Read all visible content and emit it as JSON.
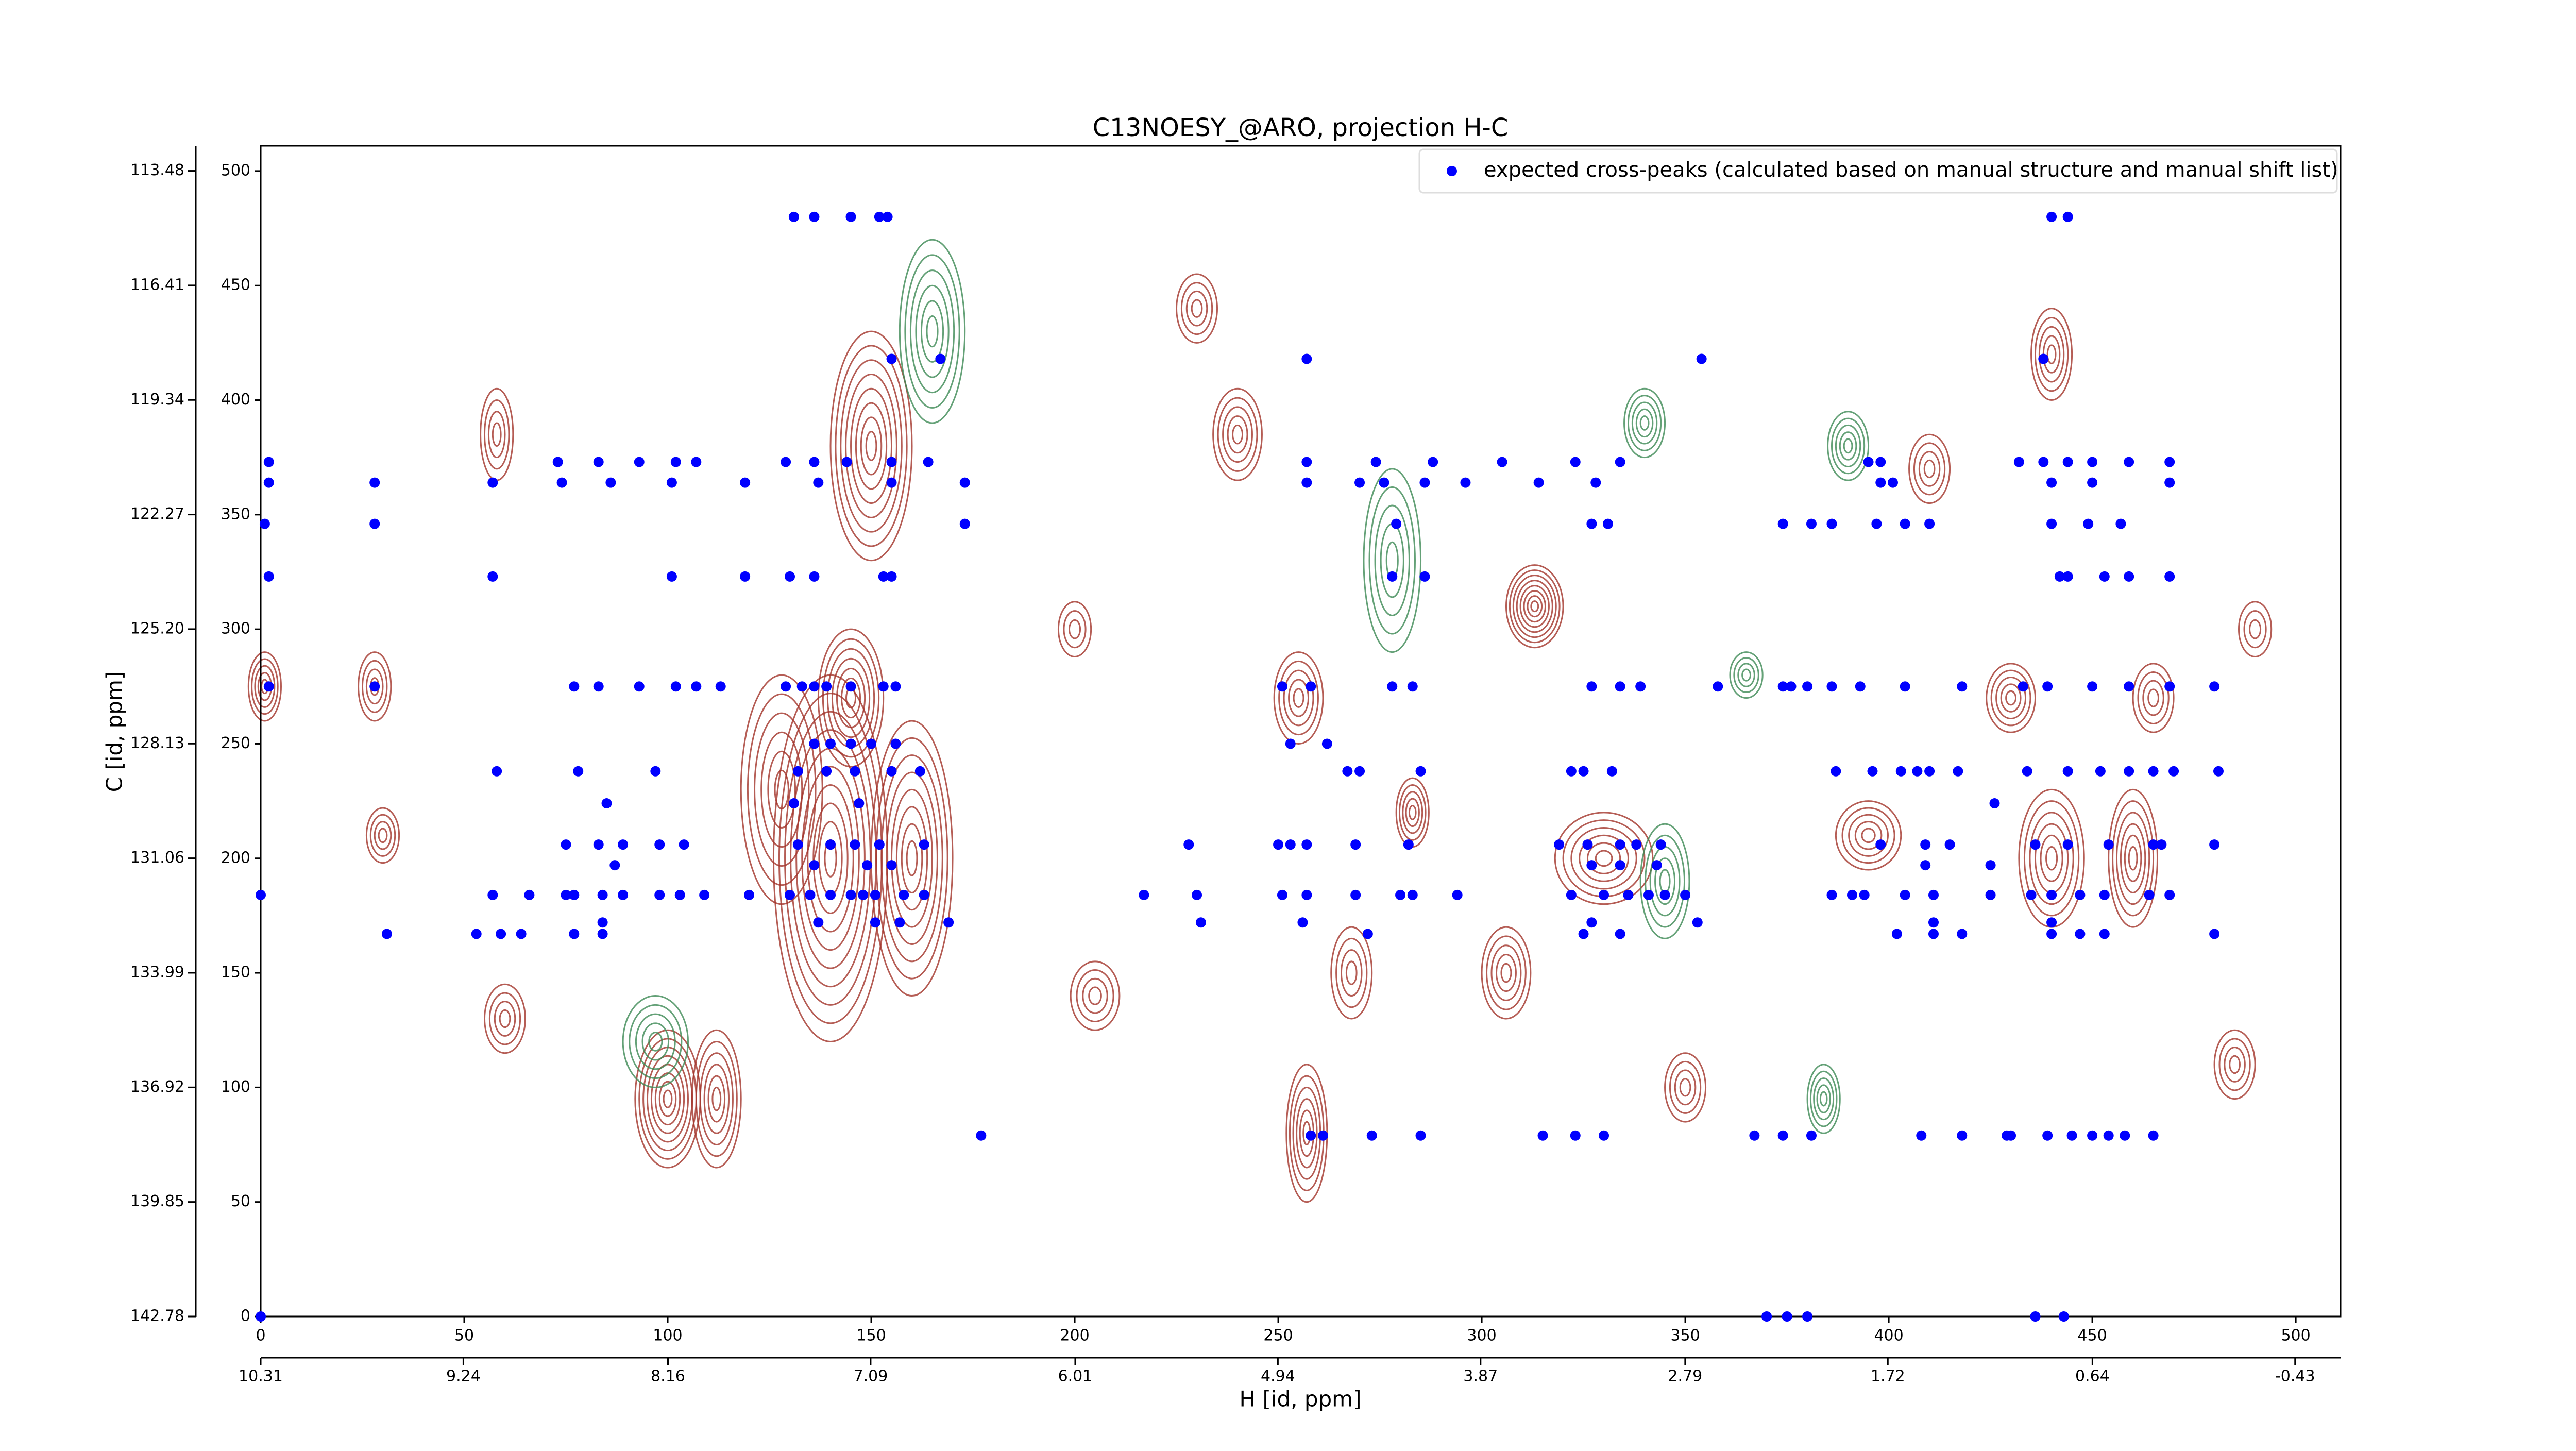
{
  "chart_data": {
    "type": "scatter",
    "title": "C13NOESY_@ARO, projection H-C",
    "x_label": "H [id, ppm]",
    "y_label": "C [id, ppm]",
    "xlim": [
      0,
      511
    ],
    "xticks": [
      0,
      50,
      100,
      150,
      200,
      250,
      300,
      350,
      400,
      450,
      500
    ],
    "ylim": [
      0,
      511
    ],
    "yticks": [
      0,
      50,
      100,
      150,
      200,
      250,
      300,
      350,
      400,
      450,
      500
    ],
    "x2lim": [
      10.31,
      -0.67
    ],
    "x2ticks": [
      10.31,
      9.24,
      8.16,
      7.09,
      6.01,
      4.94,
      3.87,
      2.79,
      1.72,
      0.64,
      -0.43
    ],
    "y2lim": [
      142.78,
      112.84
    ],
    "y2ticks": [
      142.78,
      139.85,
      136.92,
      133.99,
      131.06,
      128.13,
      {
        "value": 125.2,
        "label": "125.20"
      },
      122.27,
      119.34,
      116.41,
      113.48
    ],
    "legend": "upper right",
    "series": [
      {
        "name": "expected cross-peaks (calculated based on manual structure and manual shift list)",
        "color": "#0000ff",
        "x": [
          131,
          136,
          145,
          152,
          154,
          440,
          444,
          257,
          354,
          438,
          167,
          155,
          2,
          73,
          83,
          93,
          102,
          107,
          129,
          136,
          144,
          155,
          164,
          257,
          274,
          288,
          305,
          323,
          334,
          395,
          398,
          432,
          438,
          444,
          450,
          459,
          469,
          2,
          28,
          57,
          74,
          86,
          101,
          119,
          137,
          155,
          173,
          257,
          270,
          276,
          286,
          296,
          314,
          328,
          398,
          401,
          440,
          450,
          469,
          1,
          28,
          173,
          279,
          327,
          331,
          374,
          381,
          386,
          397,
          404,
          410,
          440,
          449,
          457,
          2,
          57,
          101,
          119,
          130,
          136,
          153,
          155,
          278,
          286,
          442,
          444,
          453,
          459,
          469,
          2,
          28,
          77,
          83,
          93,
          102,
          107,
          113,
          129,
          133,
          136,
          139,
          145,
          153,
          156,
          251,
          258,
          278,
          283,
          327,
          334,
          339,
          358,
          374,
          376,
          380,
          386,
          393,
          404,
          418,
          433,
          439,
          450,
          459,
          469,
          480,
          136,
          140,
          145,
          150,
          156,
          253,
          262,
          58,
          78,
          97,
          132,
          139,
          146,
          155,
          162,
          267,
          270,
          285,
          322,
          325,
          332,
          387,
          396,
          403,
          407,
          410,
          417,
          434,
          444,
          452,
          459,
          465,
          470,
          481,
          85,
          131,
          147,
          426,
          75,
          83,
          89,
          98,
          104,
          132,
          140,
          146,
          152,
          163,
          228,
          250,
          253,
          257,
          269,
          282,
          319,
          326,
          334,
          338,
          344,
          398,
          409,
          415,
          436,
          444,
          454,
          465,
          467,
          480,
          87,
          136,
          149,
          155,
          327,
          334,
          343,
          409,
          425,
          0,
          57,
          66,
          75,
          77,
          84,
          89,
          98,
          103,
          109,
          120,
          130,
          135,
          140,
          145,
          148,
          151,
          158,
          163,
          217,
          230,
          251,
          257,
          269,
          280,
          283,
          294,
          322,
          330,
          336,
          341,
          345,
          350,
          386,
          391,
          394,
          404,
          411,
          425,
          435,
          440,
          447,
          453,
          464,
          469,
          84,
          137,
          151,
          157,
          169,
          231,
          256,
          327,
          353,
          411,
          440,
          31,
          53,
          59,
          64,
          77,
          84,
          272,
          325,
          334,
          402,
          411,
          418,
          440,
          447,
          453,
          480,
          177,
          258,
          261,
          273,
          285,
          315,
          323,
          330,
          367,
          374,
          381,
          408,
          418,
          429,
          430,
          439,
          445,
          450,
          454,
          458,
          465,
          0,
          370,
          375,
          380,
          436,
          443
        ],
        "values": [
          480,
          480,
          480,
          480,
          480,
          480,
          480,
          418,
          418,
          418,
          418,
          418,
          373,
          373,
          373,
          373,
          373,
          373,
          373,
          373,
          373,
          373,
          373,
          373,
          373,
          373,
          373,
          373,
          373,
          373,
          373,
          373,
          373,
          373,
          373,
          373,
          373,
          364,
          364,
          364,
          364,
          364,
          364,
          364,
          364,
          364,
          364,
          364,
          364,
          364,
          364,
          364,
          364,
          364,
          364,
          364,
          364,
          364,
          364,
          346,
          346,
          346,
          346,
          346,
          346,
          346,
          346,
          346,
          346,
          346,
          346,
          346,
          346,
          346,
          323,
          323,
          323,
          323,
          323,
          323,
          323,
          323,
          323,
          323,
          323,
          323,
          323,
          323,
          323,
          275,
          275,
          275,
          275,
          275,
          275,
          275,
          275,
          275,
          275,
          275,
          275,
          275,
          275,
          275,
          275,
          275,
          275,
          275,
          275,
          275,
          275,
          275,
          275,
          275,
          275,
          275,
          275,
          275,
          275,
          275,
          275,
          275,
          275,
          275,
          275,
          250,
          250,
          250,
          250,
          250,
          250,
          250,
          238,
          238,
          238,
          238,
          238,
          238,
          238,
          238,
          238,
          238,
          238,
          238,
          238,
          238,
          238,
          238,
          238,
          238,
          238,
          238,
          238,
          238,
          238,
          238,
          238,
          238,
          238,
          224,
          224,
          224,
          224,
          206,
          206,
          206,
          206,
          206,
          206,
          206,
          206,
          206,
          206,
          206,
          206,
          206,
          206,
          206,
          206,
          206,
          206,
          206,
          206,
          206,
          206,
          206,
          206,
          206,
          206,
          206,
          206,
          206,
          206,
          197,
          197,
          197,
          197,
          197,
          197,
          197,
          197,
          197,
          184,
          184,
          184,
          184,
          184,
          184,
          184,
          184,
          184,
          184,
          184,
          184,
          184,
          184,
          184,
          184,
          184,
          184,
          184,
          184,
          184,
          184,
          184,
          184,
          184,
          184,
          184,
          184,
          184,
          184,
          184,
          184,
          184,
          184,
          184,
          184,
          184,
          184,
          184,
          184,
          184,
          184,
          184,
          184,
          184,
          172,
          172,
          172,
          172,
          172,
          172,
          172,
          172,
          172,
          172,
          172,
          167,
          167,
          167,
          167,
          167,
          167,
          167,
          167,
          167,
          167,
          167,
          167,
          167,
          167,
          167,
          167,
          79,
          79,
          79,
          79,
          79,
          79,
          79,
          79,
          79,
          79,
          79,
          79,
          79,
          79,
          79,
          79,
          79,
          79,
          79,
          79,
          79,
          0,
          0,
          0,
          0,
          0,
          0
        ]
      }
    ]
  }
}
